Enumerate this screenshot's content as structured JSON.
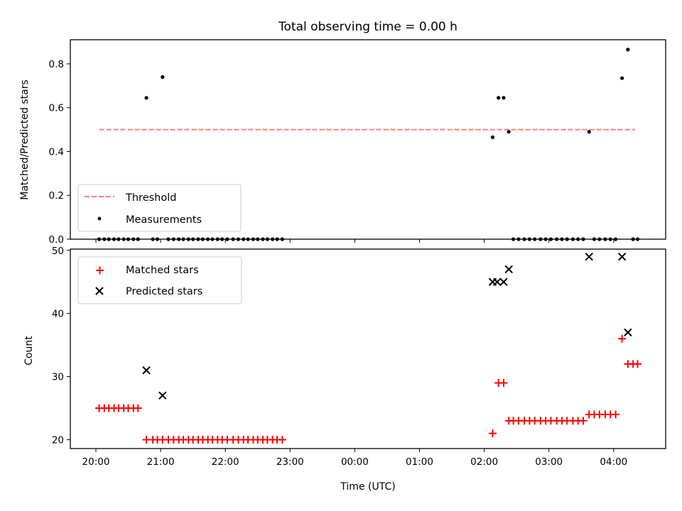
{
  "chart_data": [
    {
      "type": "scatter",
      "title": "Total observing time = 0.00 h",
      "xlabel": "",
      "ylabel": "Matched/Predicted stars",
      "ylim": [
        0,
        0.91
      ],
      "yticks": [
        "0.0",
        "0.2",
        "0.4",
        "0.6",
        "0.8"
      ],
      "x_tick_hours": [
        20,
        21,
        22,
        23,
        24,
        25,
        26,
        27,
        28
      ],
      "legend": {
        "position": "lower-left"
      },
      "series": [
        {
          "name": "Threshold",
          "kind": "dashed-line",
          "color": "#ff7f7f",
          "x": [
            20.05,
            28.33
          ],
          "values": [
            0.5,
            0.5
          ]
        },
        {
          "name": "Measurements",
          "kind": "dot",
          "color": "#000000",
          "x": [
            20.05,
            20.13,
            20.2,
            20.28,
            20.35,
            20.43,
            20.5,
            20.58,
            20.65,
            20.78,
            20.88,
            20.95,
            21.03,
            21.12,
            21.2,
            21.28,
            21.35,
            21.43,
            21.5,
            21.58,
            21.65,
            21.73,
            21.8,
            21.88,
            21.95,
            22.03,
            22.12,
            22.2,
            22.28,
            22.35,
            22.43,
            22.5,
            22.58,
            22.65,
            22.73,
            22.8,
            22.88,
            26.13,
            26.22,
            26.3,
            26.38,
            26.45,
            26.53,
            26.62,
            26.7,
            26.78,
            26.87,
            26.95,
            27.03,
            27.12,
            27.2,
            27.28,
            27.37,
            27.45,
            27.53,
            27.62,
            27.7,
            27.78,
            27.87,
            27.95,
            28.03,
            28.13,
            28.22,
            28.3,
            28.37
          ],
          "values": [
            0,
            0,
            0,
            0,
            0,
            0,
            0,
            0,
            0,
            0.645,
            0,
            0,
            0.74,
            0,
            0,
            0,
            0,
            0,
            0,
            0,
            0,
            0,
            0,
            0,
            0,
            0,
            0,
            0,
            0,
            0,
            0,
            0,
            0,
            0,
            0,
            0,
            0,
            0.465,
            0.645,
            0.645,
            0.49,
            0,
            0,
            0,
            0,
            0,
            0,
            0,
            0,
            0,
            0,
            0,
            0,
            0,
            0,
            0.49,
            0,
            0,
            0,
            0,
            0,
            0.735,
            0.865,
            0,
            0
          ]
        }
      ]
    },
    {
      "type": "scatter",
      "title": "",
      "xlabel": "Time (UTC)",
      "ylabel": "Count",
      "ylim": [
        18.6,
        50.2
      ],
      "yticks": [
        "20",
        "30",
        "40",
        "50"
      ],
      "x_tick_labels": [
        "20:00",
        "21:00",
        "22:00",
        "23:00",
        "00:00",
        "01:00",
        "02:00",
        "03:00",
        "04:00"
      ],
      "x_tick_hours": [
        20,
        21,
        22,
        23,
        24,
        25,
        26,
        27,
        28
      ],
      "legend": {
        "position": "upper-left"
      },
      "series": [
        {
          "name": "Matched stars",
          "kind": "plus",
          "color": "#ff0000",
          "x": [
            20.05,
            20.13,
            20.2,
            20.28,
            20.35,
            20.43,
            20.5,
            20.58,
            20.65,
            20.78,
            20.88,
            20.95,
            21.03,
            21.12,
            21.2,
            21.28,
            21.35,
            21.43,
            21.5,
            21.58,
            21.65,
            21.73,
            21.8,
            21.88,
            21.95,
            22.03,
            22.12,
            22.2,
            22.28,
            22.35,
            22.43,
            22.5,
            22.58,
            22.65,
            22.73,
            22.8,
            22.88,
            26.13,
            26.22,
            26.3,
            26.38,
            26.45,
            26.53,
            26.62,
            26.7,
            26.78,
            26.87,
            26.95,
            27.03,
            27.12,
            27.2,
            27.28,
            27.37,
            27.45,
            27.53,
            27.62,
            27.7,
            27.78,
            27.87,
            27.95,
            28.03,
            28.13,
            28.22,
            28.3,
            28.37
          ],
          "values": [
            25,
            25,
            25,
            25,
            25,
            25,
            25,
            25,
            25,
            20,
            20,
            20,
            20,
            20,
            20,
            20,
            20,
            20,
            20,
            20,
            20,
            20,
            20,
            20,
            20,
            20,
            20,
            20,
            20,
            20,
            20,
            20,
            20,
            20,
            20,
            20,
            20,
            21,
            29,
            29,
            23,
            23,
            23,
            23,
            23,
            23,
            23,
            23,
            23,
            23,
            23,
            23,
            23,
            23,
            23,
            24,
            24,
            24,
            24,
            24,
            24,
            36,
            32,
            32,
            32
          ]
        },
        {
          "name": "Predicted stars",
          "kind": "x",
          "color": "#000000",
          "x": [
            20.78,
            21.03,
            26.13,
            26.2,
            26.3,
            26.38,
            27.62,
            28.13,
            28.22
          ],
          "values": [
            31,
            27,
            45,
            45,
            45,
            47,
            49,
            49,
            37
          ]
        }
      ]
    }
  ]
}
